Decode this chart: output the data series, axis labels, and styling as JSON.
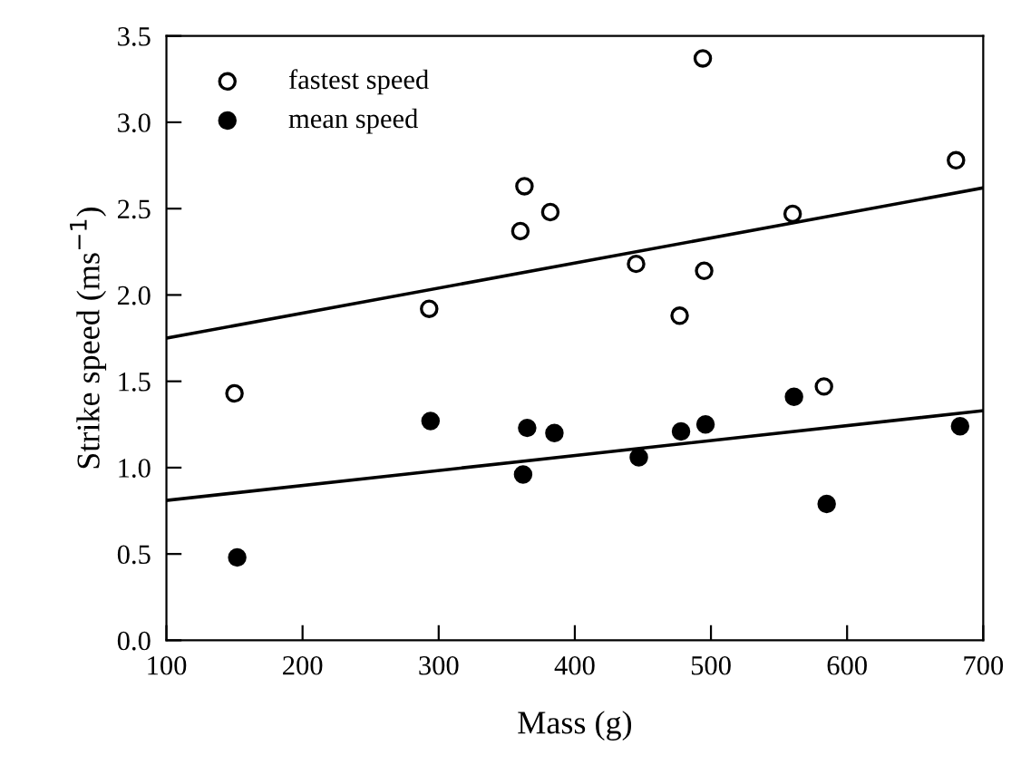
{
  "chart_data": {
    "type": "scatter",
    "xlabel": "Mass (g)",
    "ylabel": "Strike speed (ms$^{−1}$)",
    "xlim": [
      100,
      700
    ],
    "xticks": [
      100,
      200,
      300,
      400,
      500,
      600,
      700
    ],
    "ylim": [
      0,
      3.5
    ],
    "yticks": [
      {
        "value": 0,
        "label": "0.0"
      },
      {
        "value": 0.5,
        "label": "0.5"
      },
      {
        "value": 1,
        "label": "1.0"
      },
      {
        "value": 1.5,
        "label": "1.5"
      },
      {
        "value": 2,
        "label": "2.0"
      },
      {
        "value": 2.5,
        "label": "2.5"
      },
      {
        "value": 3,
        "label": "3.0"
      },
      {
        "value": 3.5,
        "label": "3.5"
      }
    ],
    "grid": false,
    "legend": "top left",
    "marker": "circle",
    "series": [
      {
        "name": "fastest speed",
        "color": "#ffffff",
        "x": [
          150,
          293,
          360,
          363,
          382,
          445,
          477,
          494,
          495,
          560,
          583,
          680
        ],
        "values": [
          1.43,
          1.92,
          2.37,
          2.63,
          2.48,
          2.18,
          1.88,
          3.37,
          2.14,
          2.47,
          1.47,
          2.78
        ]
      },
      {
        "name": "mean speed",
        "color": "#000000",
        "x": [
          152,
          294,
          362,
          365,
          385,
          447,
          478,
          496,
          561,
          585,
          683
        ],
        "values": [
          0.48,
          1.27,
          0.96,
          1.23,
          1.2,
          1.06,
          1.21,
          1.25,
          1.41,
          0.79,
          1.24
        ]
      },
      {
        "type": "line",
        "marker": "none",
        "color": "#000000",
        "x": [
          100,
          700
        ],
        "values": [
          1.75,
          2.62
        ]
      },
      {
        "type": "line",
        "marker": "none",
        "color": "#000000",
        "x": [
          100,
          700
        ],
        "values": [
          0.81,
          1.33
        ]
      }
    ]
  }
}
